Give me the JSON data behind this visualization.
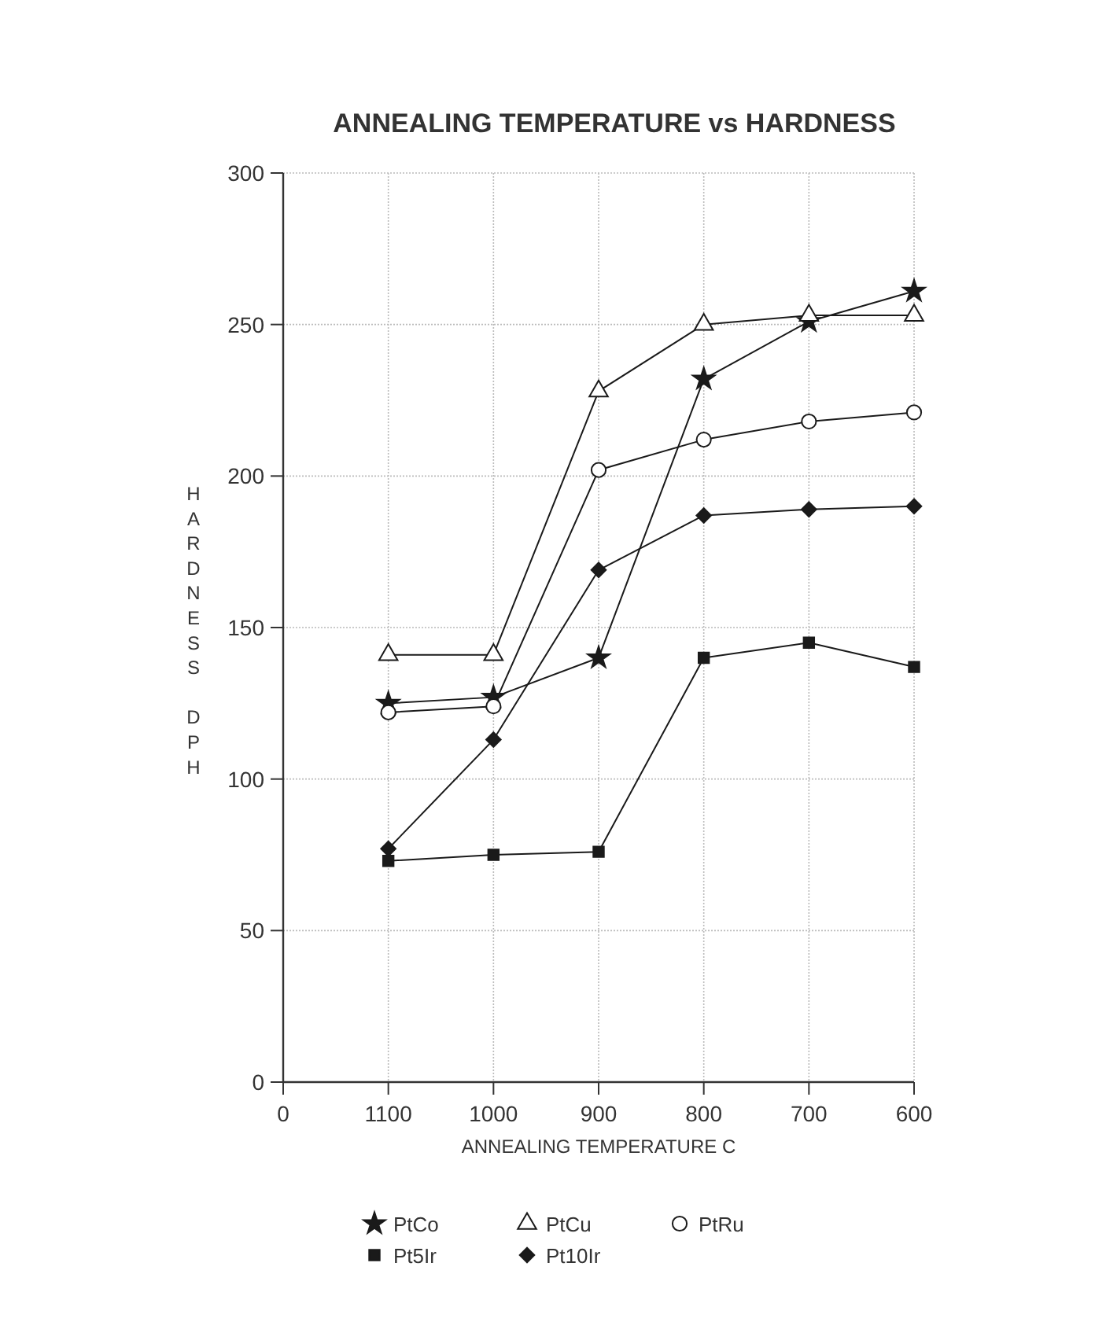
{
  "chart_data": {
    "type": "line",
    "title": "ANNEALING TEMPERATURE vs HARDNESS",
    "xlabel": "ANNEALING TEMPERATURE C",
    "ylabel": "HARDNESS DPH",
    "categories": [
      "0",
      "1100",
      "1000",
      "900",
      "800",
      "700",
      "600"
    ],
    "ylim": [
      0,
      300
    ],
    "yticks": [
      0,
      50,
      100,
      150,
      200,
      250,
      300
    ],
    "grid": true,
    "legend": "bottom",
    "series": [
      {
        "name": "PtCo",
        "color": "#1a1a1a",
        "marker": "star",
        "values": [
          null,
          125,
          127,
          140,
          232,
          251,
          261
        ]
      },
      {
        "name": "PtCu",
        "color": "#1a1a1a",
        "marker": "triangle",
        "values": [
          null,
          141,
          141,
          228,
          250,
          253,
          253
        ]
      },
      {
        "name": "PtRu",
        "color": "#1a1a1a",
        "marker": "circle",
        "values": [
          null,
          122,
          124,
          202,
          212,
          218,
          221
        ]
      },
      {
        "name": "Pt5Ir",
        "color": "#1a1a1a",
        "marker": "square",
        "values": [
          null,
          73,
          75,
          76,
          140,
          145,
          137
        ]
      },
      {
        "name": "Pt10Ir",
        "color": "#1a1a1a",
        "marker": "diamond",
        "values": [
          null,
          77,
          113,
          169,
          187,
          189,
          190
        ]
      }
    ]
  }
}
